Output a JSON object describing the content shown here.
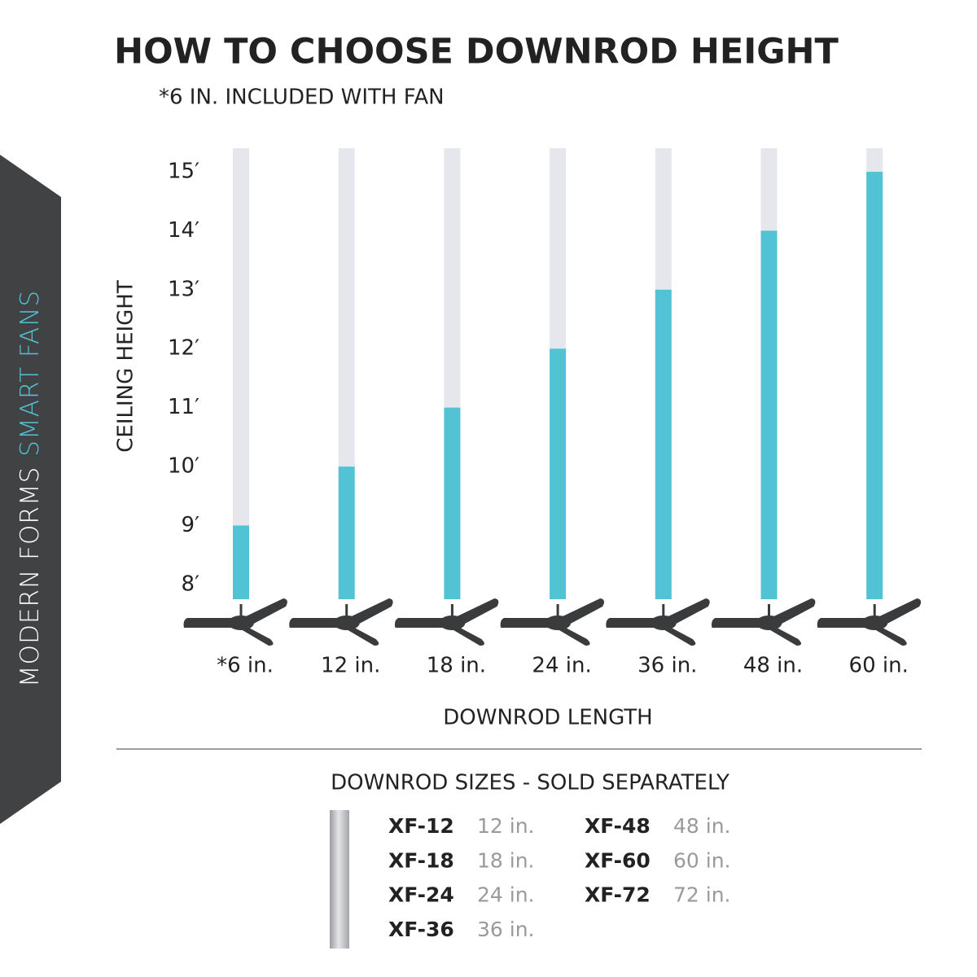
{
  "side_banner": {
    "brand": "MODERN FORMS",
    "product": "SMART FANS"
  },
  "chart_data": {
    "type": "bar",
    "title": "HOW TO CHOOSE DOWNROD HEIGHT",
    "subtitle": "*6 IN. INCLUDED WITH FAN",
    "y_label": "CEILING HEIGHT",
    "x_label": "DOWNROD LENGTH",
    "categories": [
      "*6 in.",
      "12 in.",
      "18 in.",
      "24 in.",
      "36 in.",
      "48 in.",
      "60 in."
    ],
    "values": [
      9,
      10,
      11,
      12,
      13,
      14,
      15
    ],
    "color": "#52c3d5",
    "track_color": "#e6e7ec",
    "ylim": [
      7.75,
      15.4
    ],
    "yticks": [
      {
        "value": 8,
        "label": "8′"
      },
      {
        "value": 9,
        "label": "9′"
      },
      {
        "value": 10,
        "label": "10′"
      },
      {
        "value": 11,
        "label": "11′"
      },
      {
        "value": 12,
        "label": "12′"
      },
      {
        "value": 13,
        "label": "13′"
      },
      {
        "value": 14,
        "label": "14′"
      },
      {
        "value": 15,
        "label": "15′"
      }
    ],
    "grid": false
  },
  "sizes": {
    "title": "DOWNROD SIZES - SOLD SEPARATELY",
    "items": [
      [
        "XF-12",
        "12 in."
      ],
      [
        "XF-18",
        "18 in."
      ],
      [
        "XF-24",
        "24 in."
      ],
      [
        "XF-36",
        "36 in."
      ],
      [
        "XF-48",
        "48 in."
      ],
      [
        "XF-60",
        "60 in."
      ],
      [
        "XF-72",
        "72 in."
      ]
    ]
  }
}
